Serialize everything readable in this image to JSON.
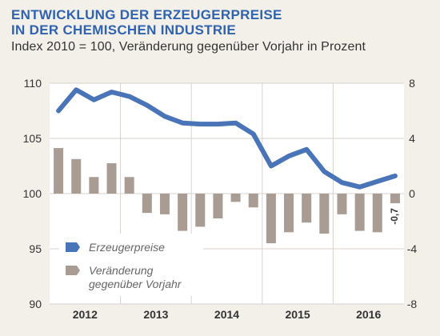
{
  "title_line1": "ENTWICKLUNG DER ERZEUGERPREISE",
  "title_line2": "IN DER CHEMISCHEN INDUSTRIE",
  "subtitle": "Index 2010 = 100, Veränderung gegenüber Vorjahr in Prozent",
  "colors": {
    "line": "#4a74b8",
    "bar": "#a99c92",
    "title": "#2f63b0",
    "background": "#f3efe9",
    "plot_background": "#ffffff",
    "grid": "#d8d2cb"
  },
  "chart_data": {
    "type": "bar",
    "title": "ENTWICKLUNG DER ERZEUGERPREISE IN DER CHEMISCHEN INDUSTRIE",
    "x": [
      "2012 Q1",
      "2012 Q2",
      "2012 Q3",
      "2012 Q4",
      "2013 Q1",
      "2013 Q2",
      "2013 Q3",
      "2013 Q4",
      "2014 Q1",
      "2014 Q2",
      "2014 Q3",
      "2014 Q4",
      "2015 Q1",
      "2015 Q2",
      "2015 Q3",
      "2015 Q4",
      "2016 Q1",
      "2016 Q2",
      "2016 Q3",
      "2016 Q4"
    ],
    "x_ticks": [
      "2012",
      "2013",
      "2014",
      "2015",
      "2016"
    ],
    "y_left": {
      "range": [
        90,
        110
      ],
      "ticks": [
        "110",
        "105",
        "100",
        "95",
        "90"
      ]
    },
    "y_right": {
      "range": [
        -8,
        8
      ],
      "ticks": [
        "8",
        "4",
        "0",
        "-4",
        "-8"
      ]
    },
    "grid": true,
    "legend_position": "bottom-left",
    "series": [
      {
        "name": "Erzeugerpreise",
        "type": "line",
        "axis": "left",
        "values": [
          107.5,
          109.4,
          108.5,
          109.2,
          108.8,
          108.0,
          107.0,
          106.4,
          106.3,
          106.3,
          106.4,
          105.4,
          102.5,
          103.4,
          104.0,
          102.0,
          101.0,
          100.6,
          101.1,
          101.6
        ]
      },
      {
        "name": "Veränderung gegenüber Vorjahr",
        "legend_lines": [
          "Veränderung",
          "gegenüber Vorjahr"
        ],
        "type": "bar",
        "axis": "right",
        "values": [
          3.3,
          2.5,
          1.2,
          2.2,
          1.2,
          -1.4,
          -1.5,
          -2.7,
          -2.4,
          -1.8,
          -0.6,
          -1.0,
          -3.6,
          -2.8,
          -2.1,
          -2.9,
          -1.5,
          -2.7,
          -2.8,
          -0.7
        ]
      }
    ],
    "annotation": {
      "text": "-0,7"
    }
  }
}
